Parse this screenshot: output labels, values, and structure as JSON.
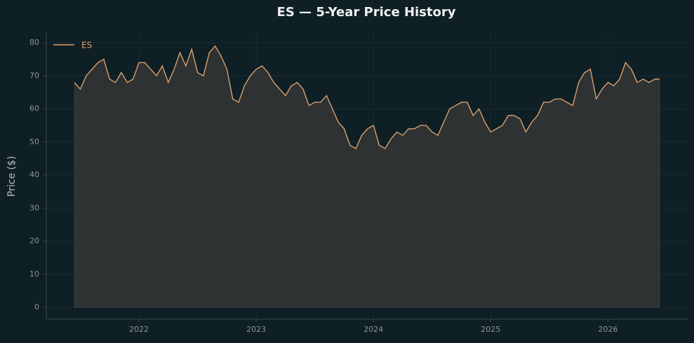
{
  "chart_data": {
    "type": "line",
    "title": "ES — 5-Year Price History",
    "y_label": "Price ($)",
    "x": [
      2021.45,
      2021.5,
      2021.55,
      2021.6,
      2021.65,
      2021.7,
      2021.75,
      2021.8,
      2021.85,
      2021.9,
      2021.95,
      2022.0,
      2022.05,
      2022.1,
      2022.15,
      2022.2,
      2022.25,
      2022.3,
      2022.35,
      2022.4,
      2022.45,
      2022.5,
      2022.55,
      2022.6,
      2022.65,
      2022.7,
      2022.75,
      2022.8,
      2022.85,
      2022.9,
      2022.95,
      2023.0,
      2023.05,
      2023.1,
      2023.15,
      2023.2,
      2023.25,
      2023.3,
      2023.35,
      2023.4,
      2023.45,
      2023.5,
      2023.55,
      2023.6,
      2023.65,
      2023.7,
      2023.75,
      2023.8,
      2023.85,
      2023.9,
      2023.95,
      2024.0,
      2024.05,
      2024.1,
      2024.15,
      2024.2,
      2024.25,
      2024.3,
      2024.35,
      2024.4,
      2024.45,
      2024.5,
      2024.55,
      2024.6,
      2024.65,
      2024.7,
      2024.75,
      2024.8,
      2024.85,
      2024.9,
      2024.95,
      2025.0,
      2025.05,
      2025.1,
      2025.15,
      2025.2,
      2025.25,
      2025.3,
      2025.35,
      2025.4,
      2025.45,
      2025.5,
      2025.55,
      2025.6,
      2025.65,
      2025.7,
      2025.75,
      2025.8,
      2025.85,
      2025.9,
      2025.95,
      2026.0,
      2026.05,
      2026.1,
      2026.15,
      2026.2,
      2026.25,
      2026.3,
      2026.35,
      2026.4,
      2026.44
    ],
    "series": [
      {
        "name": "ES",
        "color": "#d9a06b",
        "values": [
          68,
          66,
          70,
          72,
          74,
          75,
          69,
          68,
          71,
          68,
          69,
          74,
          74,
          72,
          70,
          73,
          68,
          72,
          77,
          73,
          78,
          71,
          70,
          77,
          79,
          76,
          72,
          63,
          62,
          67,
          70,
          72,
          73,
          71,
          68,
          66,
          64,
          67,
          68,
          66,
          61,
          62,
          62,
          64,
          60,
          56,
          54,
          49,
          48,
          52,
          54,
          55,
          49,
          48,
          51,
          53,
          52,
          54,
          54,
          55,
          55,
          53,
          52,
          56,
          60,
          61,
          62,
          62,
          58,
          60,
          56,
          53,
          54,
          55,
          58,
          58,
          57,
          53,
          56,
          58,
          62,
          62,
          63,
          63,
          62,
          61,
          68,
          71,
          72,
          63,
          66,
          68,
          67,
          69,
          74,
          72,
          68,
          69,
          68,
          69,
          69
        ]
      }
    ],
    "area_color": "#2e3233",
    "xlim": [
      2021.21,
      2026.68
    ],
    "xticks": [
      2022,
      2023,
      2024,
      2025,
      2026
    ],
    "ylim": [
      -3.6,
      83.4
    ],
    "yticks": [
      0,
      10,
      20,
      30,
      40,
      50,
      60,
      70,
      80
    ],
    "grid": true,
    "legend": "upper left"
  }
}
